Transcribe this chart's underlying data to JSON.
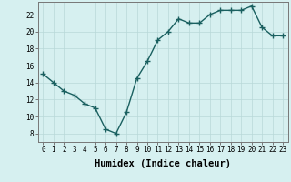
{
  "xlabel": "Humidex (Indice chaleur)",
  "ylabel": "",
  "x": [
    0,
    1,
    2,
    3,
    4,
    5,
    6,
    7,
    8,
    9,
    10,
    11,
    12,
    13,
    14,
    15,
    16,
    17,
    18,
    19,
    20,
    21,
    22,
    23
  ],
  "y": [
    15,
    14,
    13,
    12.5,
    11.5,
    11,
    8.5,
    8,
    10.5,
    14.5,
    16.5,
    19,
    20,
    21.5,
    21,
    21,
    22,
    22.5,
    22.5,
    22.5,
    23,
    20.5,
    19.5,
    19.5
  ],
  "line_color": "#1a6060",
  "marker": "+",
  "marker_size": 4,
  "bg_color": "#d6f0f0",
  "grid_color": "#b8d8d8",
  "ylim": [
    7,
    23.5
  ],
  "xlim": [
    -0.5,
    23.5
  ],
  "yticks": [
    8,
    10,
    12,
    14,
    16,
    18,
    20,
    22
  ],
  "xticks": [
    0,
    1,
    2,
    3,
    4,
    5,
    6,
    7,
    8,
    9,
    10,
    11,
    12,
    13,
    14,
    15,
    16,
    17,
    18,
    19,
    20,
    21,
    22,
    23
  ],
  "tick_fontsize": 5.5,
  "xlabel_fontsize": 7.5,
  "linewidth": 1.0,
  "markeredgewidth": 1.0
}
